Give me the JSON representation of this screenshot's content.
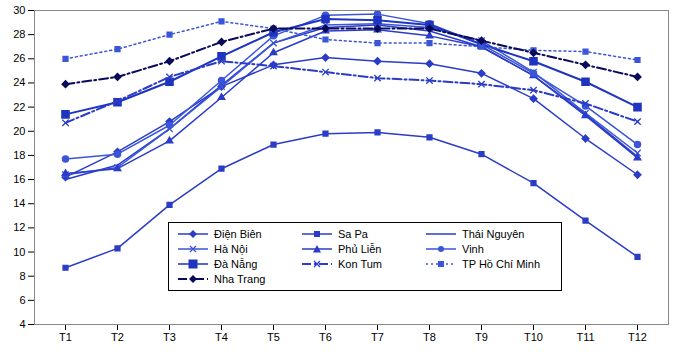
{
  "chart_data": {
    "type": "line",
    "categories": [
      "T1",
      "T2",
      "T3",
      "T4",
      "T5",
      "T6",
      "T7",
      "T8",
      "T9",
      "T10",
      "T11",
      "T12"
    ],
    "ylim": [
      4,
      30
    ],
    "yticks": [
      4,
      6,
      8,
      10,
      12,
      14,
      16,
      18,
      20,
      22,
      24,
      26,
      28,
      30
    ],
    "grid": false,
    "legend": "bottom",
    "series": [
      {
        "name": "Điện Biên",
        "color": "#2a3cc8",
        "marker": "diamond",
        "line_style": "solid",
        "values": [
          16.2,
          18.3,
          20.8,
          23.7,
          25.5,
          26.1,
          25.8,
          25.6,
          24.8,
          22.7,
          19.4,
          16.4
        ]
      },
      {
        "name": "Sa Pa",
        "color": "#2a3cc8",
        "marker": "square",
        "line_style": "solid",
        "values": [
          8.7,
          10.3,
          13.9,
          16.9,
          18.9,
          19.8,
          19.9,
          19.5,
          18.1,
          15.7,
          12.6,
          9.6
        ]
      },
      {
        "name": "Thái Nguyên",
        "color": "#2a3cc8",
        "marker": "none",
        "line_style": "solid",
        "values": [
          16.0,
          17.2,
          20.2,
          23.8,
          27.3,
          28.6,
          28.8,
          28.3,
          27.0,
          24.6,
          21.4,
          17.9
        ]
      },
      {
        "name": "Hà Nội",
        "color": "#3a55d8",
        "marker": "x",
        "line_style": "solid",
        "values": [
          16.4,
          17.0,
          20.2,
          23.7,
          27.3,
          28.8,
          28.9,
          28.6,
          27.5,
          24.9,
          21.5,
          18.2
        ]
      },
      {
        "name": "Phủ Liễn",
        "color": "#2a3cc8",
        "marker": "triangle",
        "line_style": "solid",
        "values": [
          16.5,
          16.9,
          19.2,
          22.8,
          26.5,
          28.3,
          28.4,
          27.9,
          27.0,
          24.6,
          21.3,
          17.8
        ]
      },
      {
        "name": "Vinh",
        "color": "#3a55d8",
        "marker": "circle",
        "line_style": "solid",
        "values": [
          17.7,
          18.1,
          20.5,
          24.2,
          27.9,
          29.6,
          29.7,
          28.9,
          27.2,
          24.8,
          22.1,
          18.9
        ]
      },
      {
        "name": "Đà Nẵng",
        "color": "#1f35c0",
        "marker": "square",
        "line_style": "solid",
        "values": [
          21.4,
          22.4,
          24.1,
          26.2,
          28.2,
          29.3,
          29.2,
          28.8,
          27.2,
          25.8,
          24.1,
          22.0
        ]
      },
      {
        "name": "Kon Tum",
        "color": "#2a3cc8",
        "marker": "x",
        "line_style": "dashdot",
        "values": [
          20.7,
          22.5,
          24.5,
          25.8,
          25.4,
          24.9,
          24.4,
          24.2,
          23.9,
          23.4,
          22.3,
          20.8
        ]
      },
      {
        "name": "TP Hồ Chí Minh",
        "color": "#3a55d8",
        "marker": "square",
        "line_style": "dotted",
        "values": [
          26.0,
          26.8,
          28.0,
          29.1,
          28.5,
          27.6,
          27.3,
          27.3,
          27.0,
          26.7,
          26.6,
          25.9
        ]
      },
      {
        "name": "Nha Trang",
        "color": "#0a0a5a",
        "marker": "diamond",
        "line_style": "dashdot",
        "values": [
          23.9,
          24.5,
          25.8,
          27.4,
          28.5,
          28.5,
          28.5,
          28.5,
          27.5,
          26.5,
          25.5,
          24.5
        ]
      }
    ]
  }
}
